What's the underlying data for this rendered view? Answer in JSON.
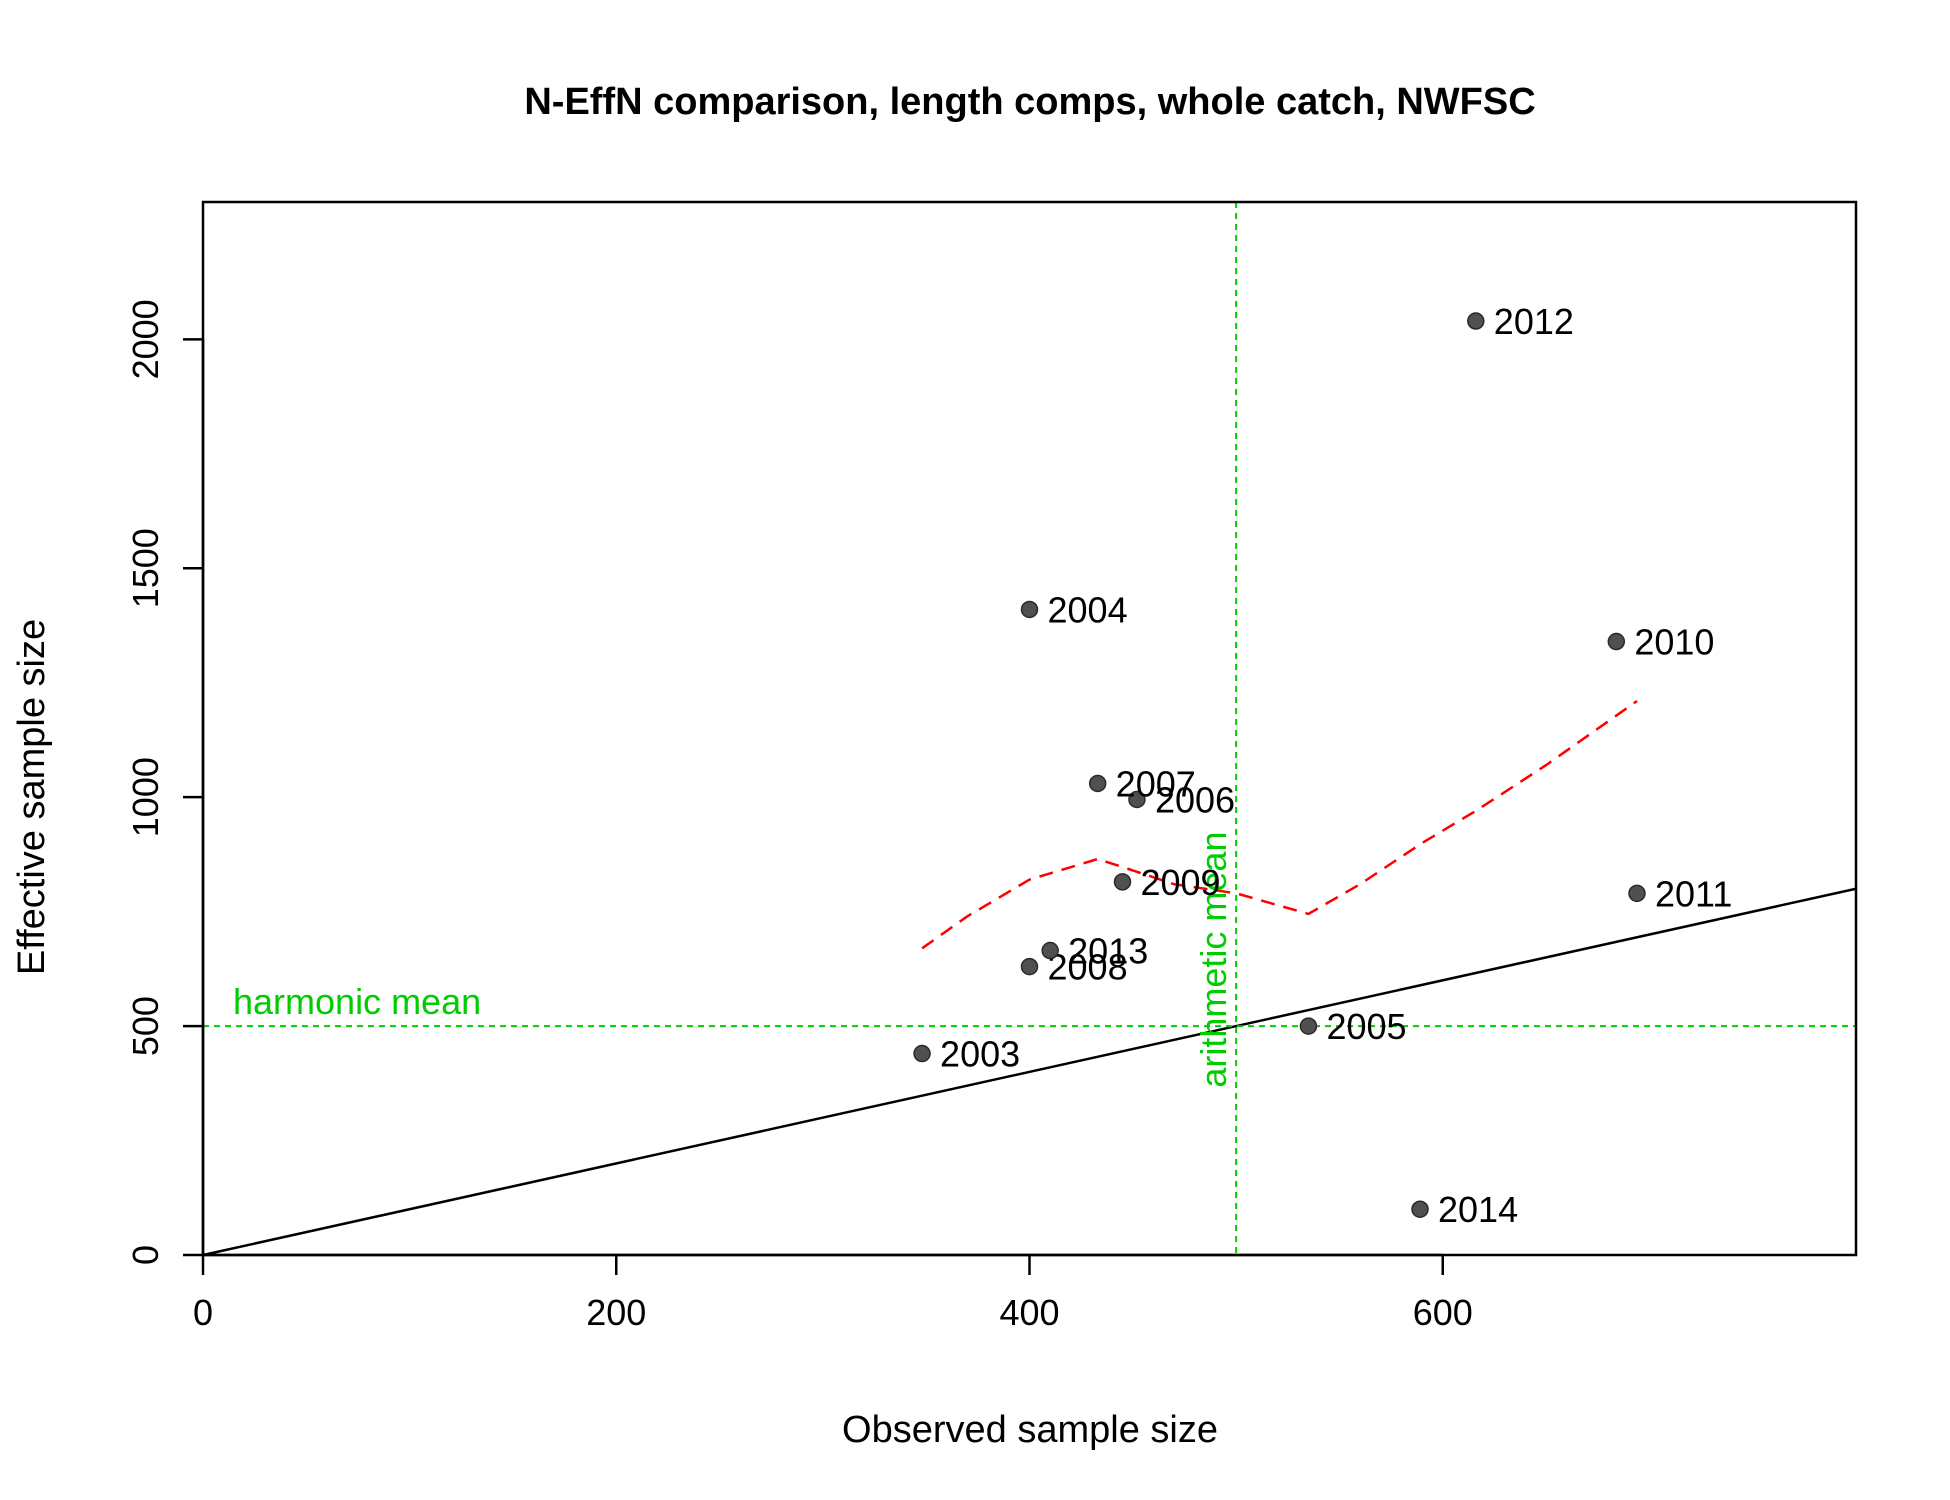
{
  "chart_data": {
    "type": "scatter",
    "title": "N-EffN comparison, length comps, whole catch, NWFSC",
    "xlabel": "Observed sample size",
    "ylabel": "Effective sample size",
    "xlim": [
      0,
      800
    ],
    "ylim": [
      0,
      2300
    ],
    "x_ticks": [
      0,
      200,
      400,
      600
    ],
    "y_ticks": [
      0,
      500,
      1000,
      1500,
      2000
    ],
    "x_tick_labels": [
      "0",
      "200",
      "400",
      "600"
    ],
    "y_tick_labels": [
      "0",
      "500",
      "1000",
      "1500",
      "2000"
    ],
    "points": [
      {
        "label": "2003",
        "x": 348,
        "y": 440
      },
      {
        "label": "2004",
        "x": 400,
        "y": 1410
      },
      {
        "label": "2005",
        "x": 535,
        "y": 500
      },
      {
        "label": "2006",
        "x": 452,
        "y": 995
      },
      {
        "label": "2007",
        "x": 433,
        "y": 1030
      },
      {
        "label": "2008",
        "x": 400,
        "y": 630
      },
      {
        "label": "2009",
        "x": 445,
        "y": 815
      },
      {
        "label": "2010",
        "x": 684,
        "y": 1340
      },
      {
        "label": "2011",
        "x": 694,
        "y": 790
      },
      {
        "label": "2012",
        "x": 616,
        "y": 2040
      },
      {
        "label": "2013",
        "x": 410,
        "y": 665
      },
      {
        "label": "2014",
        "x": 589,
        "y": 100
      }
    ],
    "reference_lines": {
      "one_to_one": {
        "color": "#000000"
      },
      "harmonic_mean": {
        "label": "harmonic mean",
        "y": 500,
        "color": "#00cc00"
      },
      "arithmetic_mean": {
        "label": "arithmetic mean",
        "x": 500,
        "color": "#00cc00"
      }
    },
    "smoother": {
      "color": "#ff0000",
      "x": [
        348,
        370,
        400,
        433,
        450,
        470,
        500,
        535,
        560,
        590,
        616,
        650,
        694
      ],
      "y": [
        670,
        740,
        820,
        865,
        840,
        810,
        790,
        745,
        810,
        900,
        970,
        1070,
        1210
      ]
    },
    "point_color": "#505050",
    "grid": false,
    "legend": "none"
  }
}
